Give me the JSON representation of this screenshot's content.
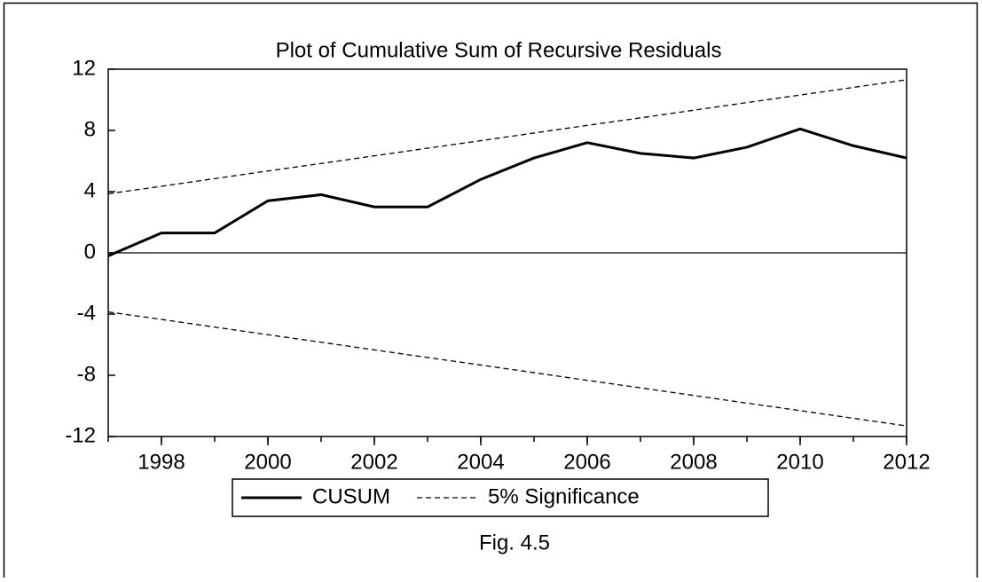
{
  "chart_data": {
    "type": "line",
    "title": "Plot of Cumulative Sum of Recursive Residuals",
    "caption": "Fig. 4.5",
    "x": [
      1997,
      1998,
      1999,
      2000,
      2001,
      2002,
      2003,
      2004,
      2005,
      2006,
      2007,
      2008,
      2009,
      2010,
      2011,
      2012
    ],
    "series": [
      {
        "name": "CUSUM",
        "color": "#000000",
        "style": "solid",
        "values": [
          -0.2,
          1.3,
          1.3,
          3.4,
          3.8,
          3.0,
          3.0,
          4.8,
          6.2,
          7.2,
          6.5,
          6.2,
          6.9,
          8.1,
          7.0,
          6.2
        ]
      },
      {
        "name": "5% Significance",
        "color": "#000000",
        "style": "dashed",
        "upper": [
          3.86,
          4.35,
          4.85,
          5.35,
          5.84,
          6.34,
          6.84,
          7.33,
          7.83,
          8.33,
          8.82,
          9.32,
          9.82,
          10.31,
          10.81,
          11.31
        ],
        "lower": [
          -3.86,
          -4.35,
          -4.85,
          -5.35,
          -5.84,
          -6.34,
          -6.84,
          -7.33,
          -7.83,
          -8.33,
          -8.82,
          -9.32,
          -9.82,
          -10.31,
          -10.81,
          -11.31
        ]
      }
    ],
    "xlim": [
      1997,
      2012
    ],
    "xticks": [
      1998,
      2000,
      2002,
      2004,
      2006,
      2008,
      2010,
      2012
    ],
    "ylim": [
      -12,
      12
    ],
    "yticks": [
      12,
      8,
      4,
      0,
      -4,
      -8,
      -12
    ],
    "grid": false,
    "legend": "bottom"
  }
}
